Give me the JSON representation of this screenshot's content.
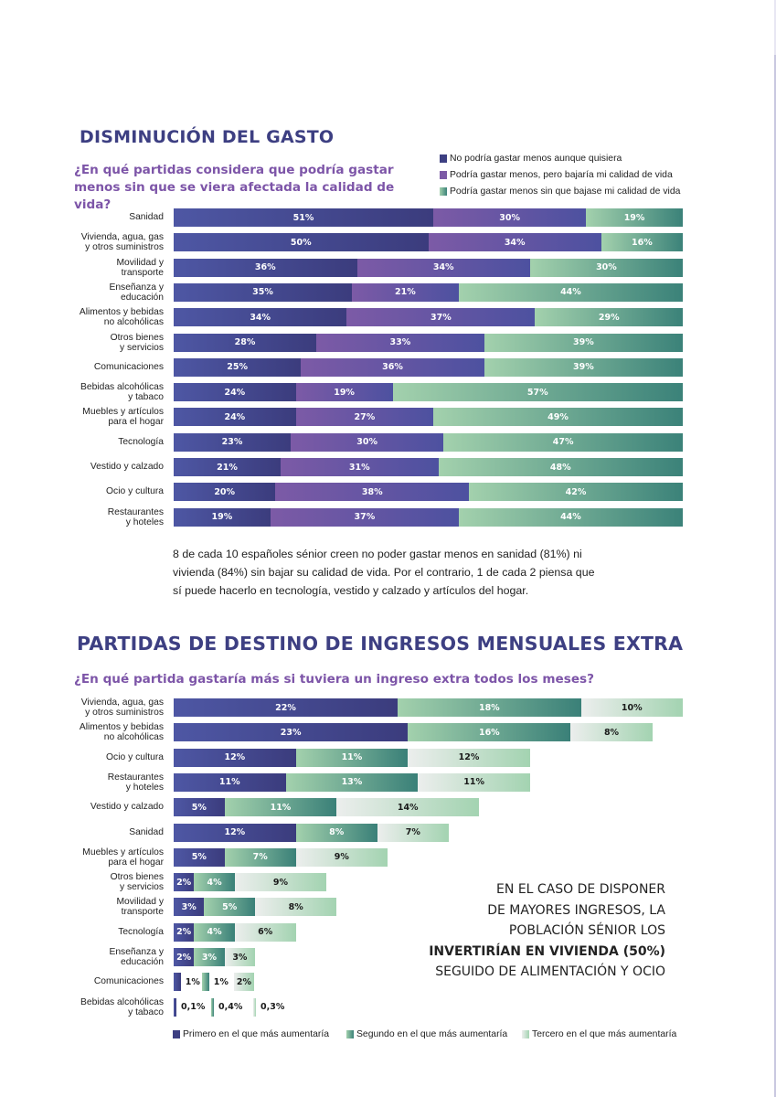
{
  "section1": {
    "title": "DISMINUCIÓN DEL GASTO",
    "subtitle": "¿En qué partidas considera que podría gastar menos sin que se viera afectada la calidad de vida?",
    "paragraph": "8 de cada 10 españoles sénior creen no poder gastar menos en sanidad (81%) ni vivienda (84%) sin bajar su calidad de vida. Por el contrario, 1 de cada 2 piensa que sí puede hacerlo en tecnología, vestido y calzado y artículos del hogar."
  },
  "section2": {
    "title": "PARTIDAS DE DESTINO DE INGRESOS MENSUALES EXTRA",
    "subtitle": "¿En qué partida gastaría más si tuviera un ingreso extra todos los meses?",
    "callout_lines": [
      "EN EL CASO DE DISPONER",
      "DE MAYORES INGRESOS, LA",
      "POBLACIÓN SÉNIOR LOS"
    ],
    "callout_bold": "INVERTIRÍAN EN VIVIENDA (50%)",
    "callout_last": "SEGUIDO DE ALIMENTACIÓN Y OCIO"
  },
  "colors": {
    "navy": "#3d3f82",
    "purple": "#7d55a8",
    "teal": "#3b8279",
    "mint": "#a3d1ad",
    "light": "#eceeed"
  },
  "chart_data": [
    {
      "type": "bar",
      "orientation": "horizontal",
      "stacked": true,
      "title": "DISMINUCIÓN DEL GASTO",
      "subtitle": "¿En qué partidas considera que podría gastar menos sin que se viera afectada la calidad de vida?",
      "legend_position": "top-right",
      "categories": [
        "Sanidad",
        "Vivienda, agua, gas\ny otros suministros",
        "Movilidad y\ntransporte",
        "Enseñanza y\neducación",
        "Alimentos y bebidas\nno alcohólicas",
        "Otros bienes\ny servicios",
        "Comunicaciones",
        "Bebidas alcohólicas\ny tabaco",
        "Muebles y artículos\npara el hogar",
        "Tecnología",
        "Vestido y calzado",
        "Ocio y cultura",
        "Restaurantes\ny hoteles"
      ],
      "series": [
        {
          "name": "No podría gastar menos aunque quisiera",
          "values": [
            51,
            50,
            36,
            35,
            34,
            28,
            25,
            24,
            24,
            23,
            21,
            20,
            19
          ]
        },
        {
          "name": "Podría gastar menos, pero bajaría mi calidad de vida",
          "values": [
            30,
            34,
            34,
            21,
            37,
            33,
            36,
            19,
            27,
            30,
            31,
            38,
            37
          ]
        },
        {
          "name": "Podría gastar menos sin que bajase mi calidad de vida",
          "values": [
            19,
            16,
            30,
            44,
            29,
            39,
            39,
            57,
            49,
            47,
            48,
            42,
            44
          ]
        }
      ],
      "labels": [
        [
          "51%",
          "50%",
          "36%",
          "35%",
          "34%",
          "28%",
          "25%",
          "24%",
          "24%",
          "23%",
          "21%",
          "20%",
          "19%"
        ],
        [
          "30%",
          "34%",
          "34%",
          "21%",
          "37%",
          "33%",
          "36%",
          "19%",
          "27%",
          "30%",
          "31%",
          "38%",
          "37%"
        ],
        [
          "19%",
          "16%",
          "30%",
          "44%",
          "29%",
          "39%",
          "39%",
          "57%",
          "49%",
          "47%",
          "48%",
          "42%",
          "44%"
        ]
      ],
      "xlim": [
        0,
        100
      ]
    },
    {
      "type": "bar",
      "orientation": "horizontal",
      "stacked": true,
      "title": "PARTIDAS DE DESTINO DE INGRESOS MENSUALES EXTRA",
      "subtitle": "¿En qué partida gastaría más si tuviera un ingreso extra todos los meses?",
      "legend_position": "bottom",
      "categories": [
        "Vivienda, agua, gas\ny otros suministros",
        "Alimentos y bebidas\nno alcohólicas",
        "Ocio y cultura",
        "Restaurantes\ny hoteles",
        "Vestido y calzado",
        "Sanidad",
        "Muebles y artículos\npara el hogar",
        "Otros bienes\ny servicios",
        "Movilidad y\ntransporte",
        "Tecnología",
        "Enseñanza y\neducación",
        "Comunicaciones",
        "Bebidas alcohólicas\ny tabaco"
      ],
      "series": [
        {
          "name": "Primero en el que más aumentaría",
          "values": [
            22,
            23,
            12,
            11,
            5,
            12,
            5,
            2,
            3,
            2,
            2,
            1,
            0.1
          ]
        },
        {
          "name": "Segundo en el que más aumentaría",
          "values": [
            18,
            16,
            11,
            13,
            11,
            8,
            7,
            4,
            5,
            4,
            3,
            1,
            0.4
          ]
        },
        {
          "name": "Tercero en el que más aumentaría",
          "values": [
            10,
            8,
            12,
            11,
            14,
            7,
            9,
            9,
            8,
            6,
            3,
            2,
            0.3
          ]
        }
      ],
      "labels": [
        [
          "22%",
          "23%",
          "12%",
          "11%",
          "5%",
          "12%",
          "5%",
          "2%",
          "3%",
          "2%",
          "2%",
          "1%",
          "0,1%"
        ],
        [
          "18%",
          "16%",
          "11%",
          "13%",
          "11%",
          "8%",
          "7%",
          "4%",
          "5%",
          "4%",
          "3%",
          "1%",
          "0,4%"
        ],
        [
          "10%",
          "8%",
          "12%",
          "11%",
          "14%",
          "7%",
          "9%",
          "9%",
          "8%",
          "6%",
          "3%",
          "2%",
          "0,3%"
        ]
      ],
      "xlim": [
        0,
        50
      ]
    }
  ]
}
